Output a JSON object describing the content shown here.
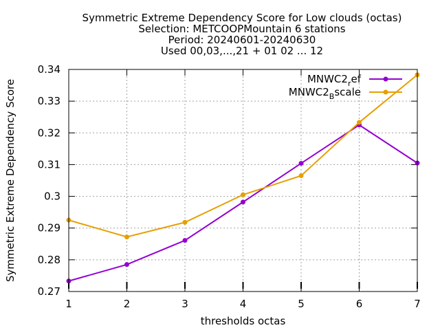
{
  "chart_data": {
    "type": "line",
    "title_lines": [
      "Symmetric Extreme Dependency Score  for Low clouds (octas)",
      "Selection: METCOOPMountain      6 stations",
      "Period: 20240601-20240630",
      "Used 00,03,...,21 + 01 02 ... 12"
    ],
    "xlabel": "thresholds octas",
    "ylabel": "Symmetric Extreme Dependency Score",
    "xlim": [
      1,
      7
    ],
    "ylim": [
      0.27,
      0.34
    ],
    "x_ticks": [
      "1",
      "2",
      "3",
      "4",
      "5",
      "6",
      "7"
    ],
    "y_ticks": [
      "0.27",
      "0.28",
      "0.29",
      "0.3",
      "0.31",
      "0.32",
      "0.33",
      "0.34"
    ],
    "grid": true,
    "legend_position": "top-right",
    "x": [
      1,
      2,
      3,
      4,
      5,
      6,
      7
    ],
    "series": [
      {
        "name": "MNWC2_ref",
        "legend_parts": [
          "MNWC2",
          "r",
          "ef"
        ],
        "color": "#9400d3",
        "values": [
          0.2733,
          0.2785,
          0.2861,
          0.2982,
          0.3104,
          0.3225,
          0.3105
        ]
      },
      {
        "name": "MNWC2_Bscale",
        "legend_parts": [
          "MNWC2",
          "B",
          "scale"
        ],
        "color": "#e69f00",
        "values": [
          0.2925,
          0.2872,
          0.2918,
          0.3005,
          0.3065,
          0.3233,
          0.3383
        ]
      }
    ]
  }
}
